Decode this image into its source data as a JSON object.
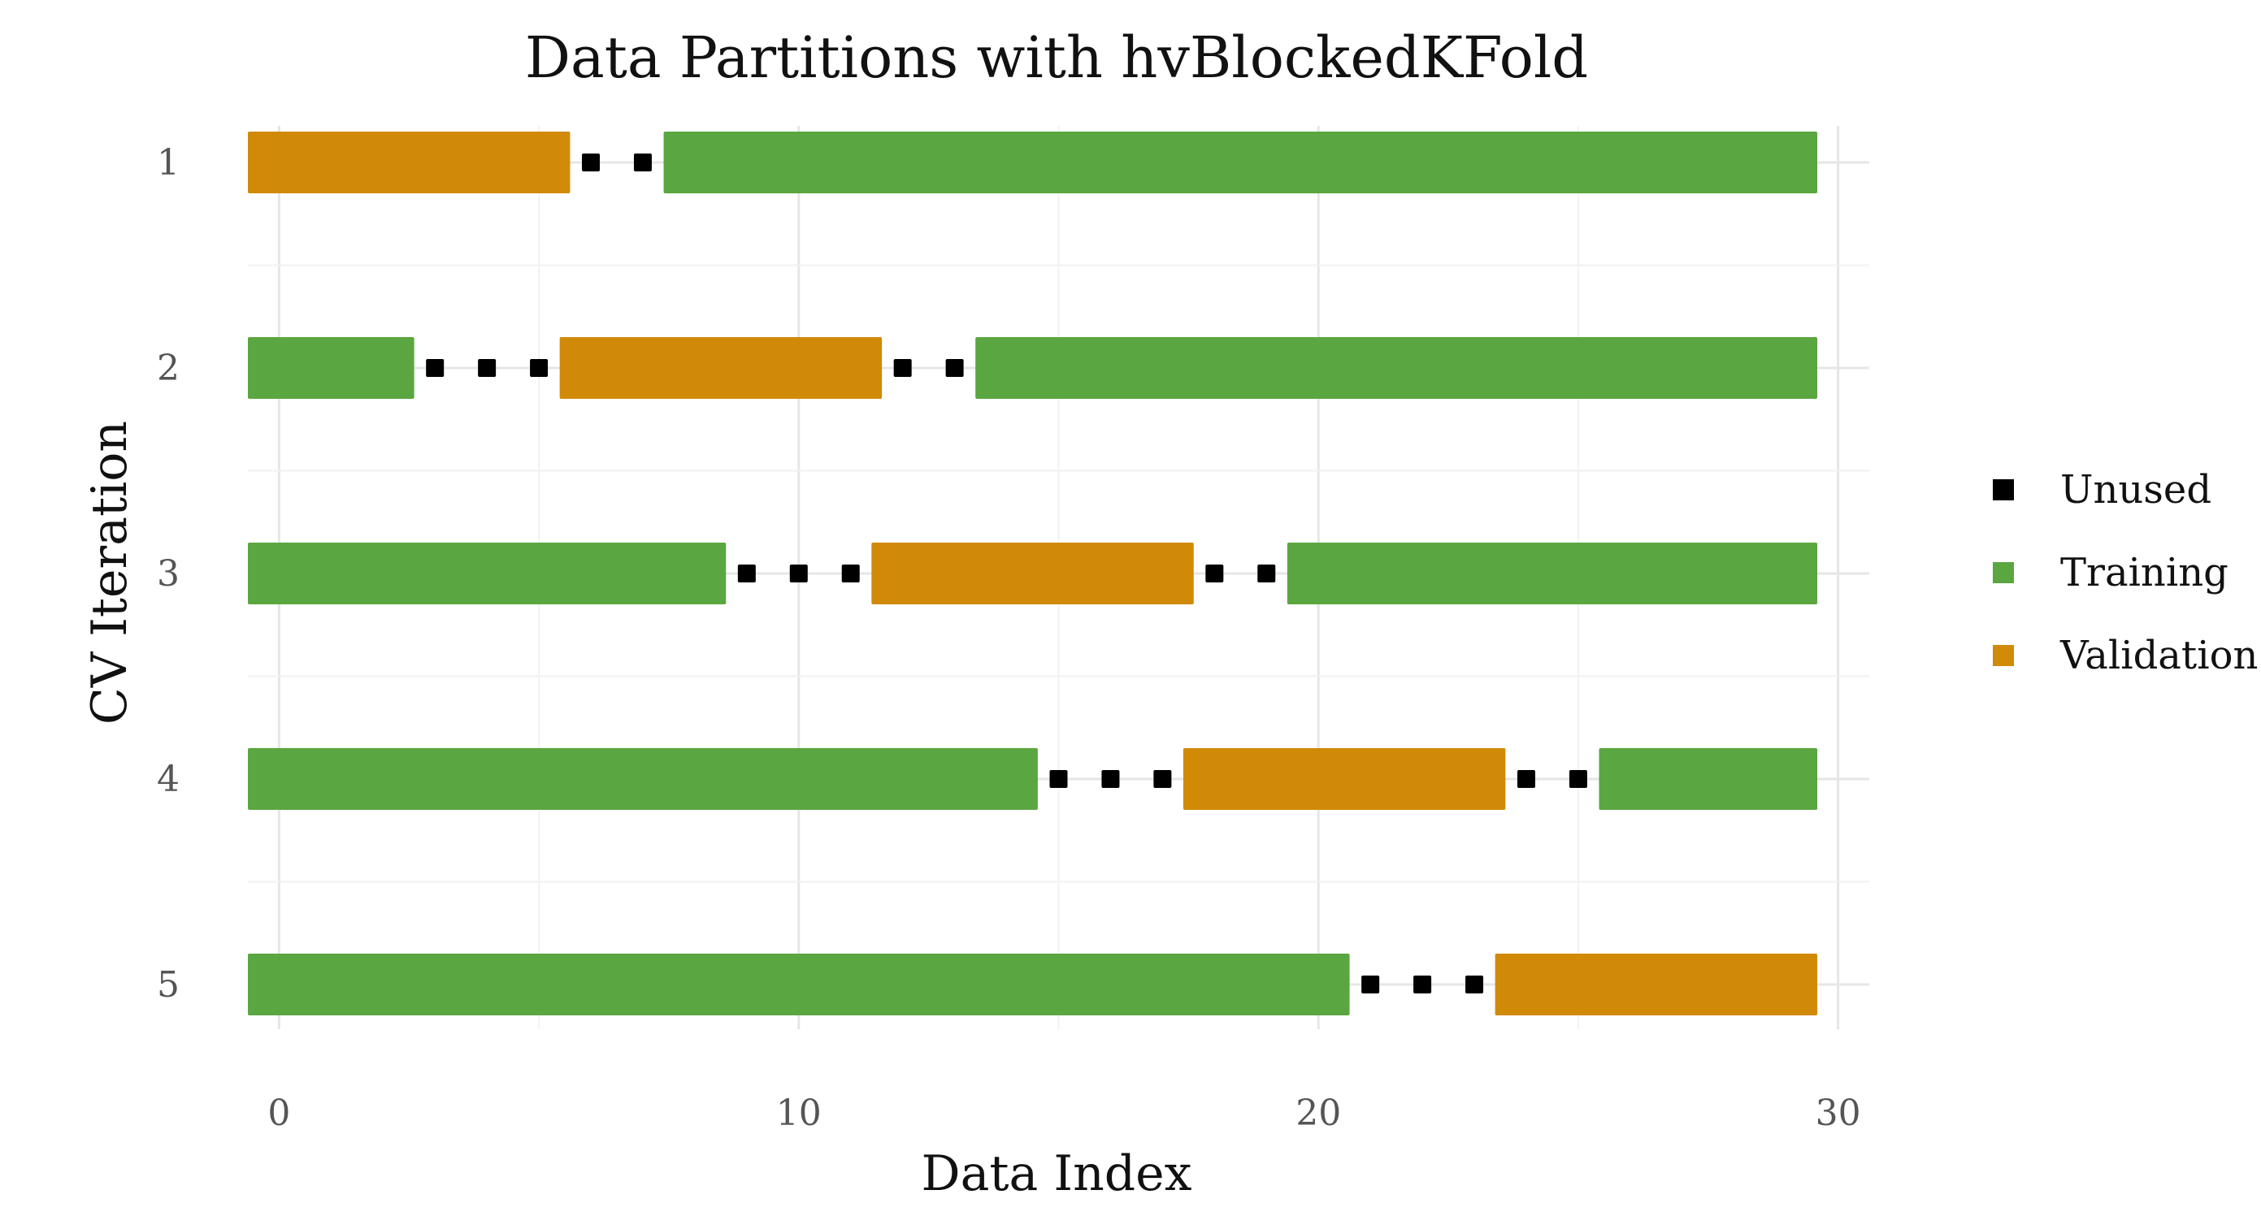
{
  "chart_data": {
    "type": "bar",
    "subtype": "horizontal-segment",
    "title": "Data Partitions with hvBlockedKFold",
    "xlabel": "Data Index",
    "ylabel": "CV Iteration",
    "xlim": [
      -0.6,
      30.6
    ],
    "x_ticks": [
      0,
      10,
      20,
      30
    ],
    "y_categories": [
      "1",
      "2",
      "3",
      "4",
      "5"
    ],
    "grid": true,
    "legend_position": "right",
    "legend": [
      {
        "key": "unused",
        "label": "Unused",
        "color": "#000000",
        "marker": "square"
      },
      {
        "key": "training",
        "label": "Training",
        "color": "#5aa640",
        "marker": "square"
      },
      {
        "key": "validation",
        "label": "Validation",
        "color": "#d08a07",
        "marker": "square"
      }
    ],
    "iterations": [
      {
        "iteration": "1",
        "segments": [
          {
            "type": "validation",
            "start": 0,
            "end": 5
          },
          {
            "type": "unused",
            "indices": [
              6,
              7
            ]
          },
          {
            "type": "training",
            "start": 8,
            "end": 29
          }
        ]
      },
      {
        "iteration": "2",
        "segments": [
          {
            "type": "training",
            "start": 0,
            "end": 2
          },
          {
            "type": "unused",
            "indices": [
              3,
              4,
              5
            ]
          },
          {
            "type": "validation",
            "start": 6,
            "end": 11
          },
          {
            "type": "unused",
            "indices": [
              12,
              13
            ]
          },
          {
            "type": "training",
            "start": 14,
            "end": 29
          }
        ]
      },
      {
        "iteration": "3",
        "segments": [
          {
            "type": "training",
            "start": 0,
            "end": 8
          },
          {
            "type": "unused",
            "indices": [
              9,
              10,
              11
            ]
          },
          {
            "type": "validation",
            "start": 12,
            "end": 17
          },
          {
            "type": "unused",
            "indices": [
              18,
              19
            ]
          },
          {
            "type": "training",
            "start": 20,
            "end": 29
          }
        ]
      },
      {
        "iteration": "4",
        "segments": [
          {
            "type": "training",
            "start": 0,
            "end": 14
          },
          {
            "type": "unused",
            "indices": [
              15,
              16,
              17
            ]
          },
          {
            "type": "validation",
            "start": 18,
            "end": 23
          },
          {
            "type": "unused",
            "indices": [
              24,
              25
            ]
          },
          {
            "type": "training",
            "start": 26,
            "end": 29
          }
        ]
      },
      {
        "iteration": "5",
        "segments": [
          {
            "type": "training",
            "start": 0,
            "end": 20
          },
          {
            "type": "unused",
            "indices": [
              21,
              22,
              23
            ]
          },
          {
            "type": "validation",
            "start": 24,
            "end": 29
          }
        ]
      }
    ]
  }
}
